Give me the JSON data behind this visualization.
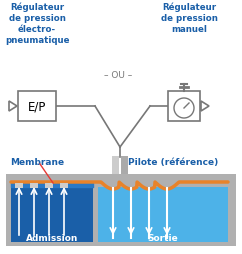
{
  "bg_color": "#ffffff",
  "title_left": "Régulateur\nde pression\nélectro-\npneumatique",
  "title_right": "Régulateur\nde pression\nmanuel",
  "title_center": "– OU –",
  "label_membrane": "Membrane",
  "label_pilote": "Pilote (référence)",
  "label_admission": "Admission",
  "label_sortie": "Sortie",
  "blue_dark": "#1a5fa8",
  "blue_mid": "#2979c7",
  "blue_light": "#4db2e8",
  "orange": "#e8832a",
  "gray": "#aaaaaa",
  "gray_dark": "#777777",
  "gray_light": "#cccccc",
  "gray_body": "#b0b0b0",
  "text_blue": "#1a5fa8",
  "red_pointer": "#e53935"
}
